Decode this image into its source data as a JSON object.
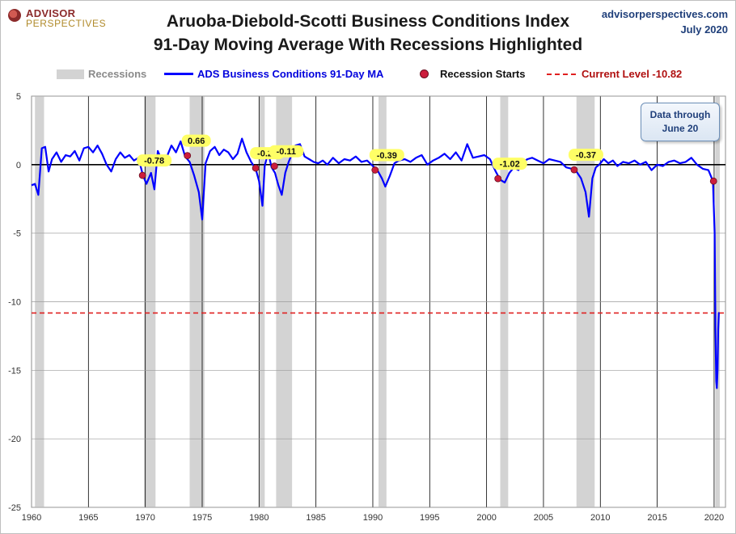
{
  "header": {
    "logo_line1": "ADVISOR",
    "logo_line2": "PERSPECTIVES",
    "title_line1": "Aruoba-Diebold-Scotti Business Conditions Index",
    "title_line2": "91-Day Moving Average With Recessions Highlighted",
    "site": "advisorperspectives.com",
    "date": "July 2020"
  },
  "legend": {
    "recessions": "Recessions",
    "line": "ADS Business Conditions 91-Day MA",
    "starts": "Recession Starts",
    "current": "Current Level -10.82"
  },
  "note": {
    "line1": "Data through",
    "line2": "June 20"
  },
  "colors": {
    "line": "#0000ff",
    "recession": "#d3d3d3",
    "marker": "#cc1d3c",
    "current": "#e02020",
    "label_bg": "#ffff66"
  },
  "chart_data": {
    "type": "line",
    "title": "Aruoba-Diebold-Scotti Business Conditions Index 91-Day Moving Average With Recessions Highlighted",
    "xlim": [
      1960,
      2021
    ],
    "ylim": [
      -25,
      5
    ],
    "x_ticks": [
      "1960",
      "1965",
      "1970",
      "1975",
      "1980",
      "1985",
      "1990",
      "1995",
      "2000",
      "2005",
      "2010",
      "2015",
      "2020"
    ],
    "y_ticks": [
      "5",
      "0",
      "-5",
      "-10",
      "-15",
      "-20",
      "-25"
    ],
    "grid": "vertical",
    "current_level": -10.82,
    "recessions": [
      [
        1960.3,
        1961.1
      ],
      [
        1969.9,
        1970.9
      ],
      [
        1973.9,
        1975.2
      ],
      [
        1980.0,
        1980.5
      ],
      [
        1981.5,
        1982.9
      ],
      [
        1990.5,
        1991.2
      ],
      [
        2001.2,
        2001.9
      ],
      [
        2007.9,
        2009.5
      ],
      [
        2020.1,
        2020.5
      ]
    ],
    "recession_starts": [
      {
        "x": 1969.75,
        "y": -0.78,
        "label": "-0.78"
      },
      {
        "x": 1973.7,
        "y": 0.66,
        "label": "0.66"
      },
      {
        "x": 1979.7,
        "y": -0.25,
        "label": "-0.25"
      },
      {
        "x": 1981.35,
        "y": -0.11,
        "label": "-0.11"
      },
      {
        "x": 1990.2,
        "y": -0.39,
        "label": "-0.39"
      },
      {
        "x": 2001.0,
        "y": -1.02,
        "label": "-1.02"
      },
      {
        "x": 2007.7,
        "y": -0.37,
        "label": "-0.37"
      },
      {
        "x": 2019.95,
        "y": -1.2,
        "label": ""
      }
    ],
    "series": [
      {
        "name": "ADS Business Conditions 91-Day MA",
        "x": [
          1960.0,
          1960.3,
          1960.6,
          1960.9,
          1961.2,
          1961.5,
          1961.8,
          1962.2,
          1962.6,
          1963.0,
          1963.4,
          1963.8,
          1964.2,
          1964.6,
          1965.0,
          1965.4,
          1965.8,
          1966.2,
          1966.6,
          1967.0,
          1967.4,
          1967.8,
          1968.2,
          1968.6,
          1969.0,
          1969.4,
          1969.8,
          1970.1,
          1970.5,
          1970.8,
          1971.1,
          1971.5,
          1971.9,
          1972.3,
          1972.7,
          1973.1,
          1973.5,
          1973.9,
          1974.3,
          1974.7,
          1975.0,
          1975.3,
          1975.7,
          1976.1,
          1976.5,
          1976.9,
          1977.3,
          1977.7,
          1978.1,
          1978.5,
          1978.9,
          1979.3,
          1979.7,
          1980.0,
          1980.3,
          1980.5,
          1980.8,
          1981.1,
          1981.4,
          1981.7,
          1982.0,
          1982.3,
          1982.6,
          1982.9,
          1983.2,
          1983.6,
          1984.0,
          1984.4,
          1984.8,
          1985.2,
          1985.6,
          1986.0,
          1986.5,
          1987.0,
          1987.5,
          1988.0,
          1988.5,
          1989.0,
          1989.5,
          1990.0,
          1990.4,
          1990.8,
          1991.1,
          1991.5,
          1991.9,
          1992.3,
          1992.8,
          1993.3,
          1993.8,
          1994.3,
          1994.8,
          1995.3,
          1995.8,
          1996.3,
          1996.8,
          1997.3,
          1997.8,
          1998.3,
          1998.8,
          1999.3,
          1999.8,
          2000.3,
          2000.8,
          2001.2,
          2001.6,
          2002.0,
          2002.4,
          2002.8,
          2003.2,
          2003.6,
          2004.0,
          2004.5,
          2005.0,
          2005.5,
          2006.0,
          2006.5,
          2007.0,
          2007.5,
          2007.9,
          2008.3,
          2008.7,
          2009.0,
          2009.3,
          2009.6,
          2009.9,
          2010.3,
          2010.7,
          2011.1,
          2011.5,
          2012.0,
          2012.5,
          2013.0,
          2013.5,
          2014.0,
          2014.5,
          2015.0,
          2015.5,
          2016.0,
          2016.5,
          2017.0,
          2017.5,
          2018.0,
          2018.5,
          2019.0,
          2019.5,
          2019.9,
          2020.05,
          2020.12,
          2020.18,
          2020.24,
          2020.3,
          2020.36,
          2020.42,
          2020.47
        ],
        "y": [
          -1.5,
          -1.4,
          -2.2,
          1.2,
          1.3,
          -0.5,
          0.4,
          0.9,
          0.2,
          0.7,
          0.6,
          1.0,
          0.3,
          1.2,
          1.3,
          0.9,
          1.4,
          0.8,
          0.0,
          -0.5,
          0.4,
          0.9,
          0.5,
          0.7,
          0.3,
          0.5,
          -0.8,
          -1.4,
          -0.6,
          -1.8,
          1.0,
          0.2,
          0.6,
          1.4,
          0.9,
          1.7,
          0.6,
          0.2,
          -0.8,
          -2.0,
          -4.0,
          0.1,
          1.0,
          1.3,
          0.7,
          1.1,
          0.9,
          0.4,
          0.8,
          1.9,
          0.9,
          0.2,
          -0.3,
          -1.2,
          -3.0,
          -0.1,
          0.9,
          -0.2,
          -0.6,
          -1.5,
          -2.2,
          -0.6,
          0.2,
          0.8,
          1.4,
          1.5,
          0.6,
          0.4,
          0.2,
          0.1,
          0.3,
          0.0,
          0.5,
          0.1,
          0.4,
          0.3,
          0.6,
          0.2,
          0.3,
          -0.1,
          -0.4,
          -1.0,
          -1.6,
          -0.8,
          0.1,
          0.3,
          0.4,
          0.2,
          0.5,
          0.7,
          0.0,
          0.3,
          0.5,
          0.8,
          0.4,
          0.9,
          0.3,
          1.5,
          0.5,
          0.6,
          0.7,
          0.4,
          -0.5,
          -1.1,
          -1.3,
          -0.6,
          -0.2,
          -0.4,
          0.2,
          0.4,
          0.5,
          0.3,
          0.1,
          0.4,
          0.3,
          0.2,
          -0.2,
          -0.3,
          -0.5,
          -1.0,
          -2.0,
          -3.8,
          -1.0,
          -0.2,
          0.0,
          0.4,
          0.1,
          0.3,
          -0.1,
          0.2,
          0.1,
          0.3,
          0.0,
          0.2,
          -0.4,
          0.0,
          -0.1,
          0.2,
          0.3,
          0.1,
          0.2,
          0.5,
          0.0,
          -0.3,
          -0.4,
          -1.2,
          -5.0,
          -12.0,
          -15.8,
          -16.3,
          -15.0,
          -12.0,
          -10.82,
          -10.82
        ]
      }
    ]
  }
}
